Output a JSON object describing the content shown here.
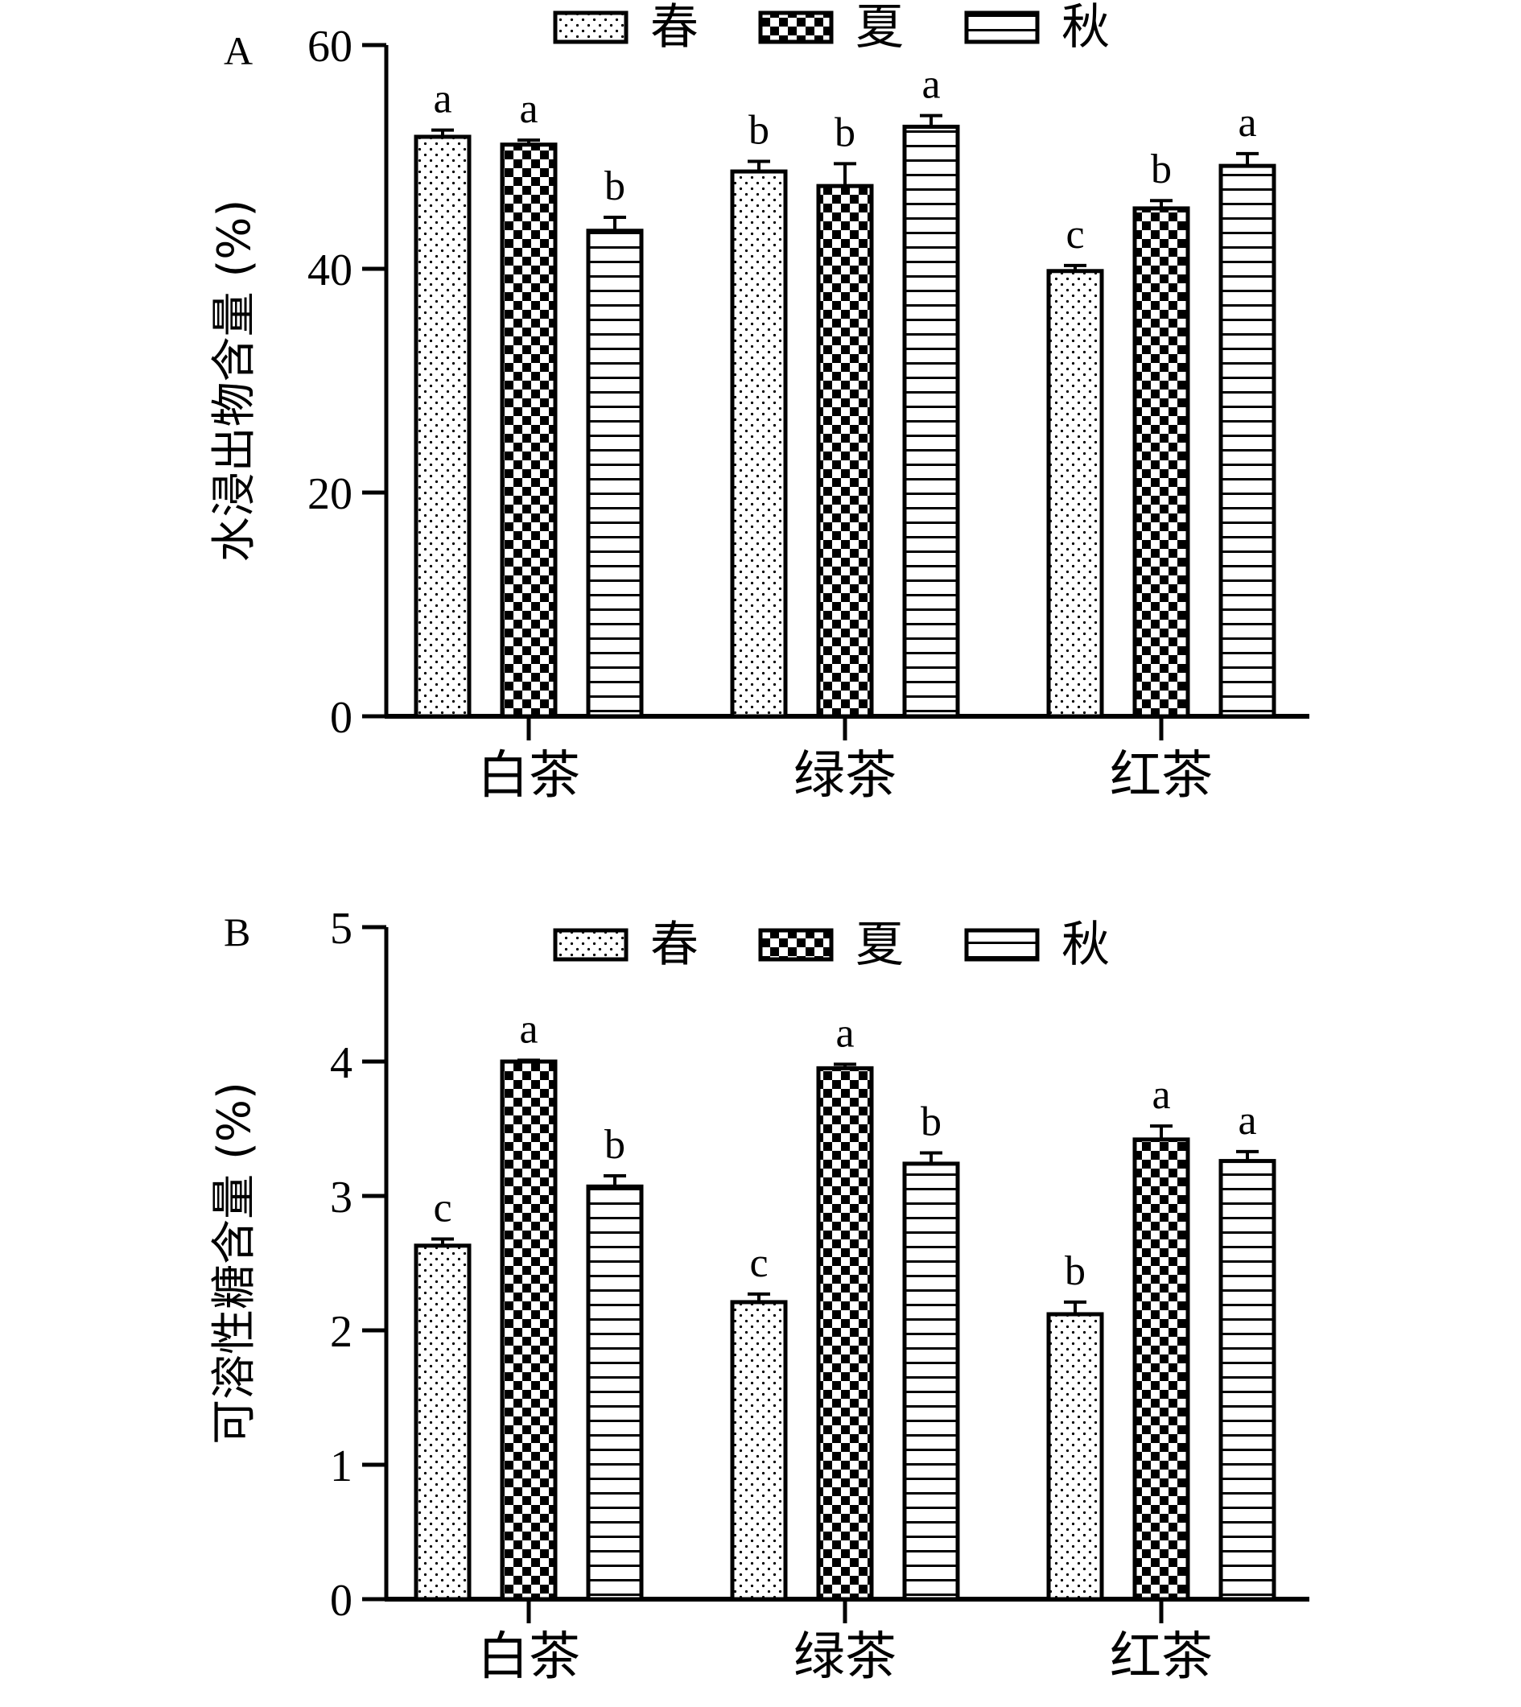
{
  "chart_data": [
    {
      "type": "bar",
      "panel_label": "A",
      "ylabel": "水浸出物含量 (%)",
      "categories": [
        "白茶",
        "绿茶",
        "红茶"
      ],
      "ylim": [
        0,
        60
      ],
      "yticks": [
        "0",
        "20",
        "40",
        "60"
      ],
      "legend_position": "top",
      "series": [
        {
          "name": "春",
          "pattern": "dots",
          "values": [
            51.8,
            48.7,
            39.8
          ],
          "errors": [
            0.6,
            0.9,
            0.5
          ],
          "letters": [
            "a",
            "b",
            "c"
          ]
        },
        {
          "name": "夏",
          "pattern": "checker",
          "values": [
            51.1,
            47.4,
            45.4
          ],
          "errors": [
            0.4,
            2.0,
            0.7
          ],
          "letters": [
            "a",
            "b",
            "b"
          ]
        },
        {
          "name": "秋",
          "pattern": "hlines",
          "values": [
            43.4,
            52.7,
            49.2
          ],
          "errors": [
            1.2,
            1.0,
            1.1
          ],
          "letters": [
            "b",
            "a",
            "a"
          ]
        }
      ]
    },
    {
      "type": "bar",
      "panel_label": "B",
      "ylabel": "可溶性糖含量 (%)",
      "categories": [
        "白茶",
        "绿茶",
        "红茶"
      ],
      "ylim": [
        0,
        5
      ],
      "yticks": [
        "0",
        "1",
        "2",
        "3",
        "4",
        "5"
      ],
      "legend_position": "top",
      "series": [
        {
          "name": "春",
          "pattern": "dots",
          "values": [
            2.63,
            2.21,
            2.12
          ],
          "errors": [
            0.05,
            0.06,
            0.09
          ],
          "letters": [
            "c",
            "c",
            "b"
          ]
        },
        {
          "name": "夏",
          "pattern": "checker",
          "values": [
            4.0,
            3.95,
            3.42
          ],
          "errors": [
            0.01,
            0.03,
            0.1
          ],
          "letters": [
            "a",
            "a",
            "a"
          ]
        },
        {
          "name": "秋",
          "pattern": "hlines",
          "values": [
            3.07,
            3.24,
            3.26
          ],
          "errors": [
            0.08,
            0.08,
            0.07
          ],
          "letters": [
            "b",
            "b",
            "a"
          ]
        }
      ]
    }
  ]
}
